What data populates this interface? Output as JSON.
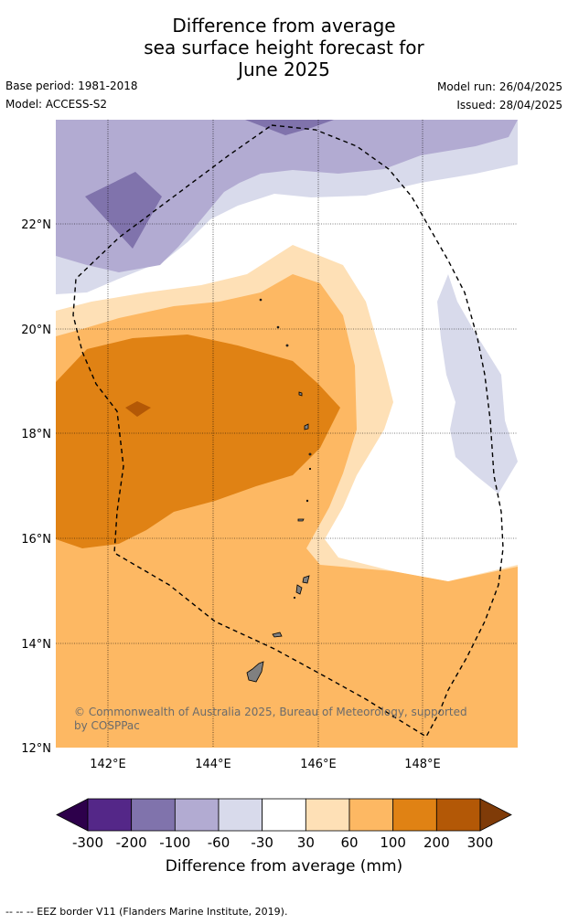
{
  "title_lines": [
    "Difference from average",
    "sea surface height forecast for",
    "June 2025"
  ],
  "meta": {
    "base_period": "Base period: 1981-2018",
    "model": "Model: ACCESS-S2",
    "model_run": "Model run: 26/04/2025",
    "issued": "Issued: 28/04/2025"
  },
  "map": {
    "lat_labels": [
      "22°N",
      "20°N",
      "18°N",
      "16°N",
      "14°N",
      "12°N"
    ],
    "lon_labels": [
      "142°E",
      "144°E",
      "146°E",
      "148°E"
    ],
    "lat_range": [
      12.0,
      24.0
    ],
    "lon_range": [
      141.0,
      149.8
    ],
    "credit": "© Commonwealth of Australia 2025, Bureau of Meteorology, supported by COSPPac",
    "land_color": "#808080"
  },
  "colorbar": {
    "title": "Difference from average (mm)",
    "labels": [
      "-300",
      "-200",
      "-100",
      "-60",
      "-30",
      "30",
      "60",
      "100",
      "200",
      "300"
    ],
    "colors": {
      "below": "#2d004b",
      "bins": [
        "#542788",
        "#8073ac",
        "#b2abd2",
        "#d8daeb",
        "#ffffff",
        "#fee0b6",
        "#fdb863",
        "#e08214",
        "#b35806"
      ],
      "above": "#7f3b08"
    }
  },
  "footer": "--  --  -- EEZ border V11 (Flanders Marine Institute, 2019)."
}
